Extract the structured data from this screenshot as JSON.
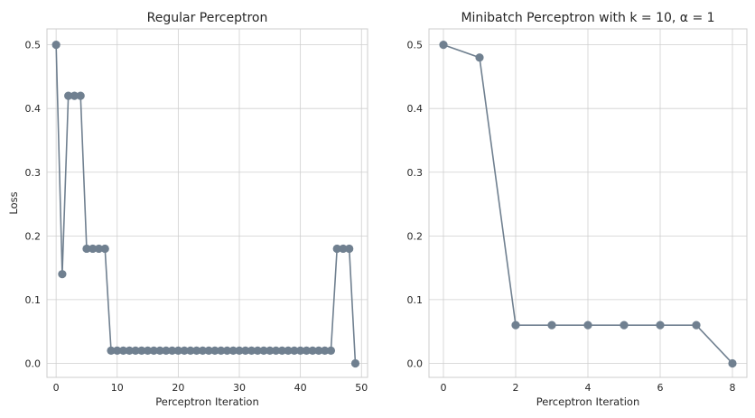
{
  "chart_data": [
    {
      "type": "line",
      "title": "Regular Perceptron",
      "xlabel": "Perceptron Iteration",
      "ylabel": "Loss",
      "xlim": [
        -1.5,
        51
      ],
      "ylim": [
        -0.022,
        0.525
      ],
      "xticks": [
        0,
        10,
        20,
        30,
        40,
        50
      ],
      "yticks": [
        0.0,
        0.1,
        0.2,
        0.3,
        0.4,
        0.5
      ],
      "grid": true,
      "color": "#708090",
      "x": [
        0,
        1,
        2,
        3,
        4,
        5,
        6,
        7,
        8,
        9,
        10,
        11,
        12,
        13,
        14,
        15,
        16,
        17,
        18,
        19,
        20,
        21,
        22,
        23,
        24,
        25,
        26,
        27,
        28,
        29,
        30,
        31,
        32,
        33,
        34,
        35,
        36,
        37,
        38,
        39,
        40,
        41,
        42,
        43,
        44,
        45,
        46,
        47,
        48,
        49
      ],
      "y": [
        0.5,
        0.14,
        0.42,
        0.42,
        0.42,
        0.18,
        0.18,
        0.18,
        0.18,
        0.02,
        0.02,
        0.02,
        0.02,
        0.02,
        0.02,
        0.02,
        0.02,
        0.02,
        0.02,
        0.02,
        0.02,
        0.02,
        0.02,
        0.02,
        0.02,
        0.02,
        0.02,
        0.02,
        0.02,
        0.02,
        0.02,
        0.02,
        0.02,
        0.02,
        0.02,
        0.02,
        0.02,
        0.02,
        0.02,
        0.02,
        0.02,
        0.02,
        0.02,
        0.02,
        0.02,
        0.02,
        0.18,
        0.18,
        0.18,
        0.0
      ]
    },
    {
      "type": "line",
      "title": "Minibatch Perceptron with k = 10, α = 1",
      "xlabel": "Perceptron Iteration",
      "ylabel": "",
      "xlim": [
        -0.4,
        8.4
      ],
      "ylim": [
        -0.022,
        0.525
      ],
      "xticks": [
        0,
        2,
        4,
        6,
        8
      ],
      "yticks": [
        0.0,
        0.1,
        0.2,
        0.3,
        0.4,
        0.5
      ],
      "grid": true,
      "color": "#708090",
      "x": [
        0,
        1,
        2,
        3,
        4,
        5,
        6,
        7,
        8
      ],
      "y": [
        0.5,
        0.48,
        0.06,
        0.06,
        0.06,
        0.06,
        0.06,
        0.06,
        0.0
      ]
    }
  ]
}
